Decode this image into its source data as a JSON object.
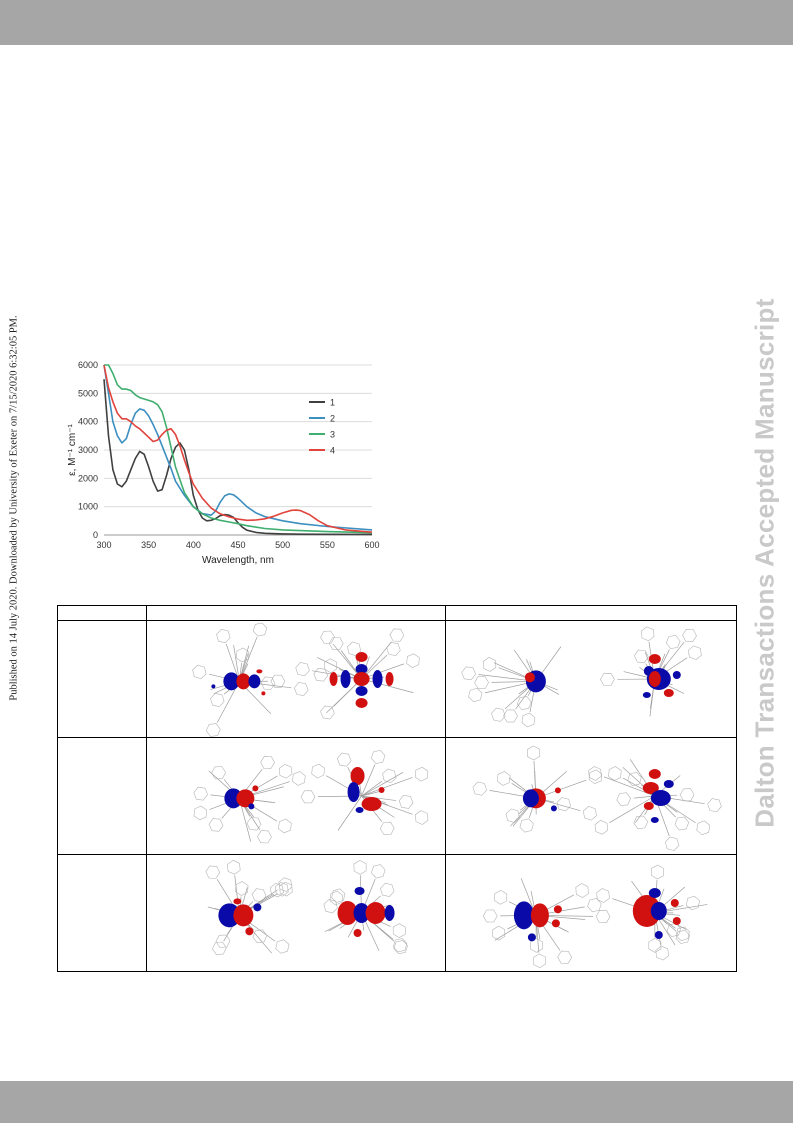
{
  "page": {
    "side_note": "Published on 14 July 2020. Downloaded by University of Exeter on 7/15/2020 6:32:05 PM.",
    "watermark": "Dalton Transactions Accepted Manuscript"
  },
  "chart_data": {
    "type": "line",
    "xlabel": "Wavelength, nm",
    "ylabel": "ε, M⁻¹ cm⁻¹",
    "xlim": [
      300,
      600
    ],
    "ylim": [
      0,
      6000
    ],
    "xticks": [
      300,
      350,
      400,
      450,
      500,
      550,
      600
    ],
    "yticks": [
      0,
      1000,
      2000,
      3000,
      4000,
      5000,
      6000
    ],
    "grid": "horizontal",
    "legend_position": "right",
    "series": [
      {
        "name": "1",
        "color": "#404040",
        "x": [
          300,
          305,
          310,
          315,
          320,
          325,
          330,
          335,
          340,
          345,
          350,
          355,
          360,
          365,
          370,
          375,
          380,
          385,
          390,
          395,
          400,
          405,
          410,
          415,
          420,
          425,
          430,
          435,
          440,
          445,
          450,
          455,
          460,
          470,
          480,
          500,
          520,
          550,
          600
        ],
        "y": [
          5500,
          3500,
          2300,
          1800,
          1700,
          1900,
          2300,
          2700,
          2950,
          2850,
          2400,
          1900,
          1550,
          1600,
          2100,
          2700,
          3100,
          3250,
          3000,
          2300,
          1400,
          900,
          600,
          500,
          520,
          580,
          680,
          720,
          700,
          620,
          430,
          270,
          170,
          90,
          60,
          40,
          30,
          25,
          20
        ]
      },
      {
        "name": "2",
        "color": "#3d8fc0",
        "x": [
          300,
          305,
          310,
          315,
          320,
          325,
          330,
          335,
          340,
          345,
          350,
          355,
          360,
          365,
          370,
          375,
          380,
          390,
          400,
          410,
          420,
          425,
          430,
          435,
          440,
          445,
          450,
          460,
          470,
          480,
          500,
          520,
          550,
          600
        ],
        "y": [
          6000,
          5000,
          4000,
          3500,
          3250,
          3400,
          3900,
          4300,
          4450,
          4400,
          4200,
          3900,
          3550,
          3150,
          2750,
          2350,
          1900,
          1400,
          1000,
          760,
          700,
          850,
          1150,
          1380,
          1450,
          1420,
          1300,
          1000,
          780,
          650,
          500,
          400,
          300,
          180
        ]
      },
      {
        "name": "3",
        "color": "#3fae6e",
        "x": [
          300,
          305,
          310,
          315,
          320,
          325,
          330,
          335,
          340,
          345,
          350,
          355,
          360,
          365,
          370,
          375,
          380,
          390,
          400,
          410,
          420,
          430,
          440,
          450,
          460,
          480,
          500,
          550,
          600
        ],
        "y": [
          6000,
          6000,
          5700,
          5300,
          5150,
          5150,
          5100,
          4950,
          4850,
          4800,
          4750,
          4700,
          4600,
          4350,
          3800,
          3100,
          2400,
          1500,
          1000,
          750,
          600,
          520,
          460,
          400,
          330,
          230,
          180,
          120,
          80
        ]
      },
      {
        "name": "4",
        "color": "#e0443c",
        "x": [
          300,
          305,
          310,
          315,
          320,
          325,
          330,
          335,
          340,
          345,
          350,
          355,
          360,
          365,
          370,
          375,
          380,
          385,
          390,
          395,
          400,
          410,
          420,
          430,
          440,
          450,
          460,
          470,
          480,
          490,
          500,
          510,
          515,
          520,
          530,
          540,
          550,
          570,
          600
        ],
        "y": [
          6000,
          5200,
          4700,
          4300,
          4100,
          4100,
          4000,
          3850,
          3750,
          3600,
          3450,
          3300,
          3350,
          3550,
          3700,
          3750,
          3550,
          3150,
          2650,
          2200,
          1800,
          1300,
          950,
          750,
          640,
          560,
          520,
          530,
          570,
          660,
          780,
          870,
          880,
          860,
          720,
          500,
          330,
          180,
          100
        ]
      }
    ]
  },
  "mo_table": {
    "header": [
      "",
      "",
      ""
    ],
    "rows": [
      {
        "label": "",
        "col1": "",
        "col2": ""
      },
      {
        "label": "",
        "col1": "",
        "col2": ""
      },
      {
        "label": "",
        "col1": "",
        "col2": ""
      }
    ]
  },
  "colors": {
    "band": "#a6a6a6",
    "watermark": "#c9c9c9",
    "lobe_positive": "#0a0aa8",
    "lobe_negative": "#d11010",
    "skeleton": "#9e9e9e"
  }
}
